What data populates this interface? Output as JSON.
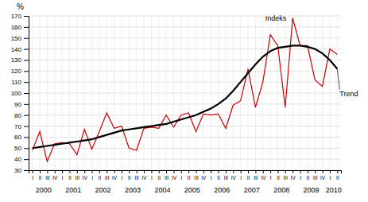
{
  "chart_data": {
    "type": "line",
    "y_label": "%",
    "categories": [
      "I",
      "II",
      "III",
      "IV",
      "I",
      "II",
      "III",
      "IV",
      "I",
      "II",
      "III",
      "IV",
      "I",
      "II",
      "III",
      "IV",
      "I",
      "II",
      "III",
      "IV",
      "I",
      "II",
      "III",
      "IV",
      "I",
      "II",
      "III",
      "IV",
      "I",
      "II",
      "III",
      "IV",
      "I",
      "II",
      "III",
      "IV",
      "I",
      "II",
      "III",
      "IV",
      "I",
      "II"
    ],
    "category_groups": [
      "2000",
      "2001",
      "2002",
      "2003",
      "2004",
      "2005",
      "2006",
      "2007",
      "2008",
      "2009",
      "2010"
    ],
    "series": [
      {
        "name": "Indeks",
        "color": "#cc0000",
        "values": [
          48,
          65,
          38,
          54,
          55,
          54,
          44,
          67,
          49,
          65,
          82,
          68,
          70,
          50,
          48,
          68,
          69,
          68,
          80,
          69,
          80,
          82,
          65,
          81,
          80,
          81,
          68,
          89,
          93,
          122,
          87,
          110,
          153,
          143,
          87,
          168,
          143,
          143,
          112,
          106,
          140,
          135
        ]
      },
      {
        "name": "Trend",
        "color": "#000000",
        "values": [
          50,
          51,
          52,
          53,
          54,
          55,
          56,
          57,
          58,
          60,
          62,
          64,
          66,
          67,
          68,
          69,
          70,
          71,
          72,
          74,
          76,
          78,
          80,
          83,
          86,
          90,
          95,
          102,
          110,
          118,
          126,
          133,
          138,
          141,
          142,
          143,
          143,
          142,
          140,
          136,
          130,
          122
        ]
      }
    ],
    "ylim": [
      30,
      170
    ],
    "yticks": [
      30,
      40,
      50,
      60,
      70,
      80,
      90,
      100,
      110,
      120,
      130,
      140,
      150,
      160,
      170
    ],
    "grid": true
  }
}
